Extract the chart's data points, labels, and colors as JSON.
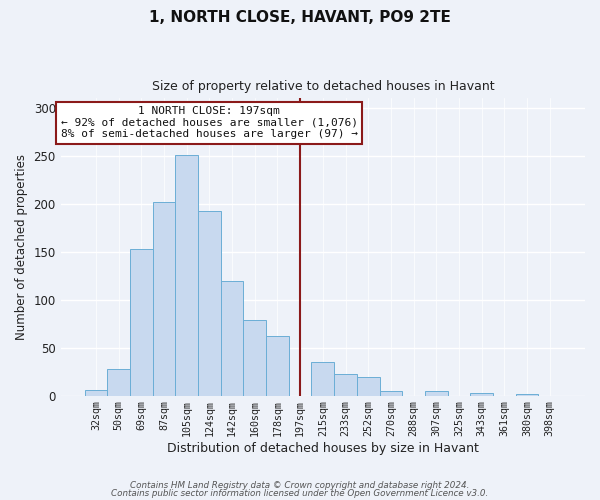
{
  "title": "1, NORTH CLOSE, HAVANT, PO9 2TE",
  "subtitle": "Size of property relative to detached houses in Havant",
  "xlabel": "Distribution of detached houses by size in Havant",
  "ylabel": "Number of detached properties",
  "bar_labels": [
    "32sqm",
    "50sqm",
    "69sqm",
    "87sqm",
    "105sqm",
    "124sqm",
    "142sqm",
    "160sqm",
    "178sqm",
    "197sqm",
    "215sqm",
    "233sqm",
    "252sqm",
    "270sqm",
    "288sqm",
    "307sqm",
    "325sqm",
    "343sqm",
    "361sqm",
    "380sqm",
    "398sqm"
  ],
  "bar_values": [
    6,
    28,
    153,
    202,
    251,
    192,
    119,
    79,
    62,
    0,
    35,
    22,
    19,
    5,
    0,
    5,
    0,
    3,
    0,
    2,
    0
  ],
  "bar_color": "#c8d9ef",
  "bar_edge_color": "#6baed6",
  "vline_color": "#8b1a1a",
  "annotation_text_line1": "1 NORTH CLOSE: 197sqm",
  "annotation_text_line2": "← 92% of detached houses are smaller (1,076)",
  "annotation_text_line3": "8% of semi-detached houses are larger (97) →",
  "annotation_box_color": "#ffffff",
  "annotation_box_edge": "#8b1a1a",
  "ylim": [
    0,
    310
  ],
  "yticks": [
    0,
    50,
    100,
    150,
    200,
    250,
    300
  ],
  "footer_line1": "Contains HM Land Registry data © Crown copyright and database right 2024.",
  "footer_line2": "Contains public sector information licensed under the Open Government Licence v3.0.",
  "bg_color": "#eef2f9"
}
